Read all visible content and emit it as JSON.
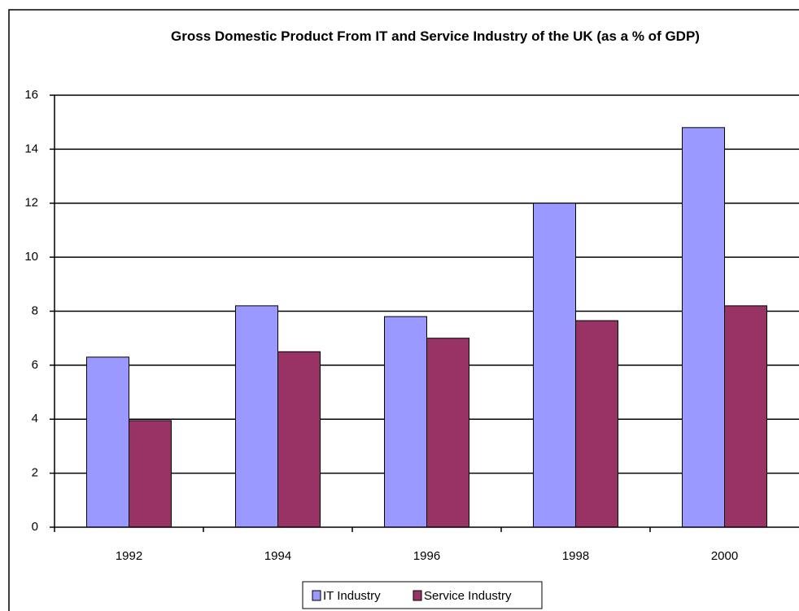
{
  "chart_data": {
    "type": "bar",
    "title": "Gross Domestic Product From IT and Service Industry of the UK (as a % of GDP)",
    "categories": [
      "1992",
      "1994",
      "1996",
      "1998",
      "2000"
    ],
    "series": [
      {
        "name": "IT Industry",
        "color": "#9999ff",
        "values": [
          6.3,
          8.2,
          7.8,
          12,
          14.8
        ]
      },
      {
        "name": "Service Industry",
        "color": "#993366",
        "values": [
          3.95,
          6.5,
          7.0,
          7.65,
          8.2
        ]
      }
    ],
    "ylim": [
      0,
      16
    ],
    "yticks": [
      0,
      2,
      4,
      6,
      8,
      10,
      12,
      14,
      16
    ],
    "grid": true,
    "legend": "bottom"
  }
}
